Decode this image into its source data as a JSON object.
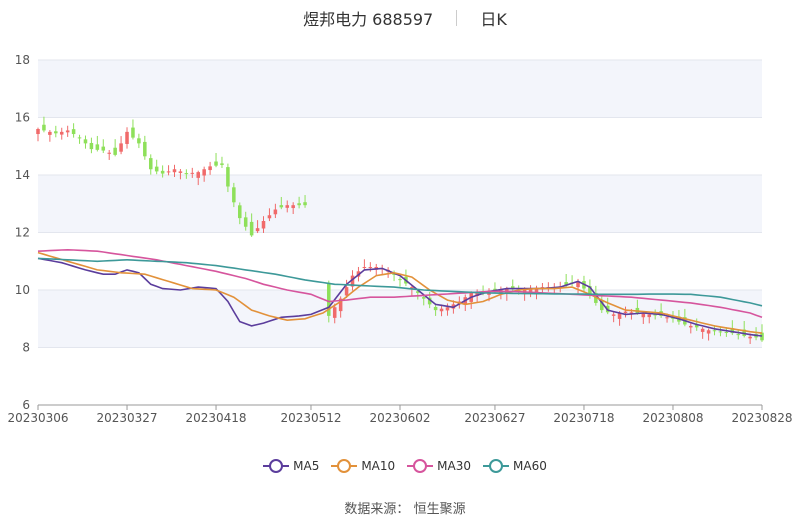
{
  "header": {
    "name": "煜邦电力 688597",
    "period": "日K"
  },
  "source": {
    "label": "数据来源：",
    "value": "恒生聚源"
  },
  "colors": {
    "up": "#f06a6a",
    "down": "#8ee05a",
    "ma5": "#5b3d9c",
    "ma10": "#e2913a",
    "ma30": "#d6559d",
    "ma60": "#3d9999",
    "band": "#f3f5fb"
  },
  "chart_data": {
    "type": "candlestick",
    "ylim": [
      6,
      18
    ],
    "yticks": [
      6,
      8,
      10,
      12,
      14,
      16,
      18
    ],
    "xticks": [
      "20230306",
      "20230327",
      "20230418",
      "20230512",
      "20230602",
      "20230627",
      "20230718",
      "20230808",
      "20230828"
    ],
    "xtick_index": [
      0,
      15,
      30,
      46,
      61,
      77,
      92,
      107,
      122
    ],
    "n": 123,
    "gaps": [
      [
        46,
        48
      ]
    ],
    "close_anchors": [
      [
        0,
        15.6
      ],
      [
        3,
        15.45
      ],
      [
        5,
        15.55
      ],
      [
        7,
        15.3
      ],
      [
        9,
        14.9
      ],
      [
        11,
        14.85
      ],
      [
        13,
        14.7
      ],
      [
        15,
        15.5
      ],
      [
        17,
        15.1
      ],
      [
        19,
        14.2
      ],
      [
        21,
        14.05
      ],
      [
        23,
        14.2
      ],
      [
        25,
        14.05
      ],
      [
        27,
        14.1
      ],
      [
        29,
        14.3
      ],
      [
        31,
        14.35
      ],
      [
        32,
        13.6
      ],
      [
        34,
        12.5
      ],
      [
        36,
        11.9
      ],
      [
        38,
        12.4
      ],
      [
        40,
        12.8
      ],
      [
        42,
        12.95
      ],
      [
        44,
        12.95
      ],
      [
        46,
        12.95
      ],
      [
        49,
        9.1
      ],
      [
        51,
        9.7
      ],
      [
        53,
        10.5
      ],
      [
        55,
        10.8
      ],
      [
        57,
        10.8
      ],
      [
        59,
        10.7
      ],
      [
        61,
        10.35
      ],
      [
        63,
        10.1
      ],
      [
        65,
        9.7
      ],
      [
        67,
        9.3
      ],
      [
        69,
        9.4
      ],
      [
        71,
        9.6
      ],
      [
        73,
        9.9
      ],
      [
        75,
        9.95
      ],
      [
        77,
        10.0
      ],
      [
        79,
        10.05
      ],
      [
        81,
        10.0
      ],
      [
        83,
        10.05
      ],
      [
        85,
        10.1
      ],
      [
        87,
        10.1
      ],
      [
        89,
        10.15
      ],
      [
        91,
        10.3
      ],
      [
        93,
        9.8
      ],
      [
        95,
        9.3
      ],
      [
        97,
        9.15
      ],
      [
        99,
        9.25
      ],
      [
        101,
        9.2
      ],
      [
        103,
        9.15
      ],
      [
        105,
        9.1
      ],
      [
        107,
        9.0
      ],
      [
        109,
        8.8
      ],
      [
        111,
        8.7
      ],
      [
        113,
        8.6
      ],
      [
        115,
        8.55
      ],
      [
        117,
        8.5
      ],
      [
        119,
        8.4
      ],
      [
        121,
        8.35
      ],
      [
        122,
        8.25
      ]
    ],
    "ma_series": [
      {
        "name": "MA5",
        "anchors": [
          [
            0,
            11.1
          ],
          [
            4,
            10.95
          ],
          [
            8,
            10.7
          ],
          [
            11,
            10.55
          ],
          [
            13,
            10.55
          ],
          [
            15,
            10.7
          ],
          [
            17,
            10.6
          ],
          [
            19,
            10.2
          ],
          [
            21,
            10.05
          ],
          [
            24,
            10.0
          ],
          [
            27,
            10.1
          ],
          [
            30,
            10.05
          ],
          [
            32,
            9.6
          ],
          [
            34,
            8.9
          ],
          [
            36,
            8.75
          ],
          [
            38,
            8.85
          ],
          [
            41,
            9.05
          ],
          [
            44,
            9.1
          ],
          [
            46,
            9.15
          ],
          [
            49,
            9.4
          ],
          [
            52,
            10.2
          ],
          [
            55,
            10.7
          ],
          [
            58,
            10.75
          ],
          [
            61,
            10.5
          ],
          [
            64,
            10.0
          ],
          [
            67,
            9.5
          ],
          [
            70,
            9.4
          ],
          [
            73,
            9.75
          ],
          [
            76,
            9.95
          ],
          [
            79,
            10.05
          ],
          [
            82,
            10.05
          ],
          [
            85,
            10.05
          ],
          [
            88,
            10.1
          ],
          [
            91,
            10.3
          ],
          [
            93,
            10.1
          ],
          [
            96,
            9.3
          ],
          [
            99,
            9.15
          ],
          [
            102,
            9.2
          ],
          [
            105,
            9.15
          ],
          [
            108,
            9.0
          ],
          [
            111,
            8.8
          ],
          [
            114,
            8.65
          ],
          [
            117,
            8.55
          ],
          [
            120,
            8.45
          ],
          [
            122,
            8.4
          ]
        ]
      },
      {
        "name": "MA10",
        "anchors": [
          [
            0,
            11.3
          ],
          [
            5,
            11.0
          ],
          [
            10,
            10.7
          ],
          [
            14,
            10.6
          ],
          [
            18,
            10.55
          ],
          [
            22,
            10.3
          ],
          [
            26,
            10.05
          ],
          [
            30,
            10.0
          ],
          [
            33,
            9.75
          ],
          [
            36,
            9.3
          ],
          [
            39,
            9.1
          ],
          [
            42,
            8.95
          ],
          [
            45,
            9.0
          ],
          [
            48,
            9.2
          ],
          [
            51,
            9.6
          ],
          [
            54,
            10.1
          ],
          [
            57,
            10.5
          ],
          [
            60,
            10.6
          ],
          [
            63,
            10.45
          ],
          [
            66,
            10.0
          ],
          [
            69,
            9.65
          ],
          [
            72,
            9.5
          ],
          [
            75,
            9.6
          ],
          [
            78,
            9.85
          ],
          [
            81,
            10.0
          ],
          [
            84,
            10.05
          ],
          [
            87,
            10.05
          ],
          [
            90,
            10.1
          ],
          [
            93,
            9.85
          ],
          [
            96,
            9.55
          ],
          [
            99,
            9.3
          ],
          [
            102,
            9.25
          ],
          [
            105,
            9.2
          ],
          [
            108,
            9.05
          ],
          [
            111,
            8.9
          ],
          [
            114,
            8.75
          ],
          [
            117,
            8.65
          ],
          [
            120,
            8.55
          ],
          [
            122,
            8.5
          ]
        ]
      },
      {
        "name": "MA30",
        "anchors": [
          [
            0,
            11.35
          ],
          [
            5,
            11.4
          ],
          [
            10,
            11.35
          ],
          [
            15,
            11.2
          ],
          [
            20,
            11.05
          ],
          [
            25,
            10.85
          ],
          [
            30,
            10.65
          ],
          [
            35,
            10.4
          ],
          [
            38,
            10.2
          ],
          [
            42,
            10.0
          ],
          [
            46,
            9.85
          ],
          [
            49,
            9.6
          ],
          [
            52,
            9.65
          ],
          [
            56,
            9.75
          ],
          [
            60,
            9.75
          ],
          [
            64,
            9.8
          ],
          [
            68,
            9.85
          ],
          [
            72,
            9.9
          ],
          [
            76,
            9.95
          ],
          [
            80,
            9.95
          ],
          [
            85,
            9.9
          ],
          [
            90,
            9.85
          ],
          [
            95,
            9.8
          ],
          [
            100,
            9.75
          ],
          [
            105,
            9.65
          ],
          [
            110,
            9.55
          ],
          [
            115,
            9.4
          ],
          [
            120,
            9.2
          ],
          [
            122,
            9.05
          ]
        ]
      },
      {
        "name": "MA60",
        "anchors": [
          [
            0,
            11.1
          ],
          [
            5,
            11.05
          ],
          [
            10,
            11.0
          ],
          [
            15,
            11.05
          ],
          [
            20,
            11.0
          ],
          [
            25,
            10.95
          ],
          [
            30,
            10.85
          ],
          [
            35,
            10.7
          ],
          [
            40,
            10.55
          ],
          [
            45,
            10.35
          ],
          [
            50,
            10.2
          ],
          [
            55,
            10.15
          ],
          [
            60,
            10.1
          ],
          [
            65,
            10.0
          ],
          [
            70,
            9.95
          ],
          [
            75,
            9.9
          ],
          [
            80,
            9.88
          ],
          [
            85,
            9.87
          ],
          [
            90,
            9.86
          ],
          [
            95,
            9.85
          ],
          [
            100,
            9.85
          ],
          [
            105,
            9.86
          ],
          [
            110,
            9.85
          ],
          [
            115,
            9.75
          ],
          [
            120,
            9.55
          ],
          [
            122,
            9.45
          ]
        ]
      }
    ]
  }
}
